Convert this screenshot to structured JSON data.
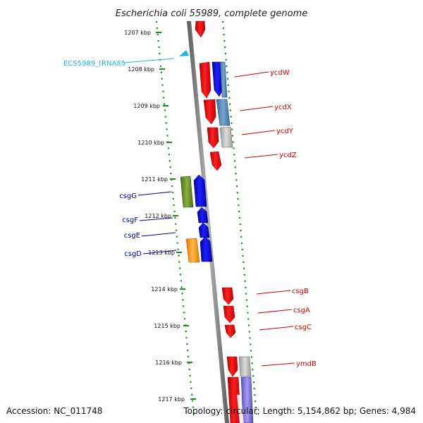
{
  "title": "Escherichia coli 55989, complete genome",
  "footer": {
    "accession": "Accession: NC_011748",
    "topology": "Topology: circular; Length: 5,154,862 bp; Genes: 4,984"
  },
  "colors": {
    "tick": "#228b22",
    "backbone": "#8c8c8c",
    "forward_gene": "#ff0000",
    "reverse_gene": "#0000ff",
    "trna": "#1eb4e6",
    "red_label": "#cc0000",
    "blue_label": "#000099"
  },
  "ruler": {
    "unit": "kbp",
    "labels": [
      "1207 kbp",
      "1208 kbp",
      "1209 kbp",
      "1210 kbp",
      "1211 kbp",
      "1212 kbp",
      "1213 kbp",
      "1214 kbp",
      "1215 kbp",
      "1216 kbp",
      "1217 kbp"
    ]
  },
  "gene_labels": {
    "trna": "ECS5989_tRNA85",
    "forward": [
      "ycdW",
      "ycdX",
      "ycdY",
      "ycdZ",
      "csgB",
      "csgA",
      "csgC",
      "ymdB"
    ],
    "reverse": [
      "csgG",
      "csgF",
      "csgE",
      "csgD"
    ]
  }
}
